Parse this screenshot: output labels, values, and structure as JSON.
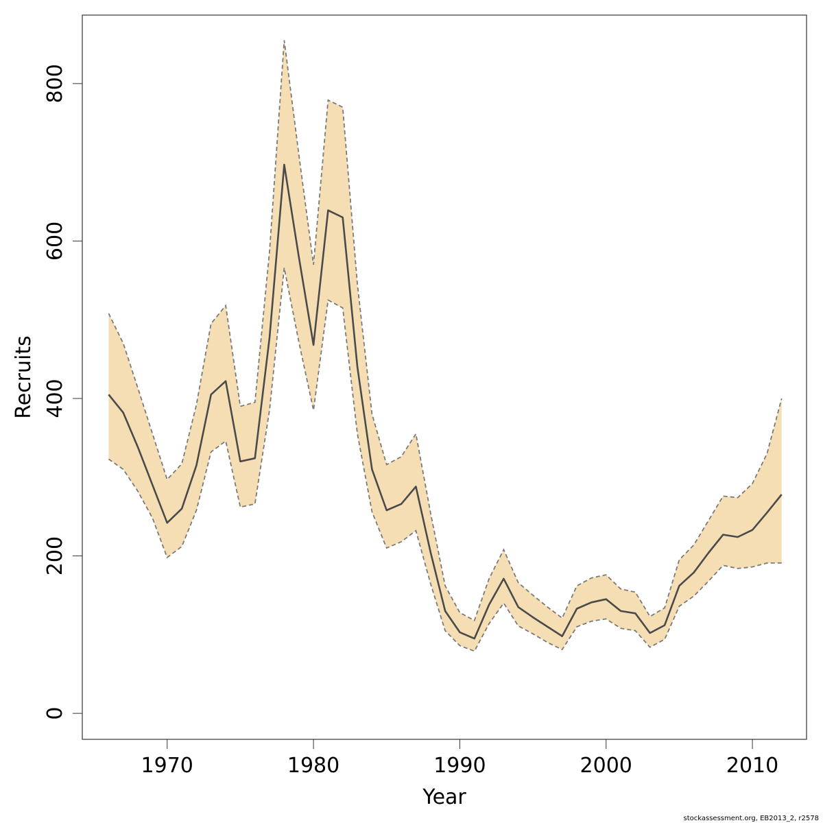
{
  "chart_data": {
    "type": "area",
    "xlabel": "Year",
    "ylabel": "Recruits",
    "xlim": [
      1964.2,
      2013.7
    ],
    "ylim": [
      -33,
      887
    ],
    "x_ticks": [
      1970,
      1980,
      1990,
      2000,
      2010
    ],
    "y_ticks": [
      0,
      200,
      400,
      600,
      800
    ],
    "x": [
      1966,
      1967,
      1968,
      1969,
      1970,
      1971,
      1972,
      1973,
      1974,
      1975,
      1976,
      1977,
      1978,
      1979,
      1980,
      1981,
      1982,
      1983,
      1984,
      1985,
      1986,
      1987,
      1988,
      1989,
      1990,
      1991,
      1992,
      1993,
      1994,
      1995,
      1996,
      1997,
      1998,
      1999,
      2000,
      2001,
      2002,
      2003,
      2004,
      2005,
      2006,
      2007,
      2008,
      2009,
      2010,
      2011,
      2012
    ],
    "series": [
      {
        "role": "estimate",
        "values": [
          405,
          382,
          338,
          290,
          242,
          260,
          315,
          405,
          422,
          320,
          324,
          478,
          697,
          580,
          468,
          639,
          630,
          440,
          310,
          258,
          266,
          288,
          205,
          130,
          103,
          95,
          138,
          171,
          135,
          122,
          110,
          98,
          133,
          141,
          145,
          130,
          127,
          102,
          112,
          162,
          179,
          204,
          227,
          224,
          233,
          255,
          278
        ]
      },
      {
        "role": "upper",
        "values": [
          508,
          470,
          413,
          355,
          297,
          317,
          392,
          495,
          518,
          390,
          395,
          588,
          855,
          710,
          570,
          779,
          770,
          545,
          380,
          316,
          326,
          355,
          255,
          162,
          128,
          118,
          171,
          208,
          166,
          150,
          135,
          121,
          162,
          172,
          176,
          158,
          154,
          123,
          134,
          195,
          214,
          245,
          276,
          274,
          292,
          330,
          400
        ]
      },
      {
        "role": "lower",
        "values": [
          323,
          310,
          282,
          248,
          198,
          212,
          258,
          332,
          346,
          262,
          266,
          386,
          566,
          472,
          385,
          525,
          515,
          355,
          256,
          210,
          218,
          232,
          165,
          105,
          86,
          79,
          114,
          140,
          111,
          101,
          90,
          81,
          110,
          117,
          120,
          108,
          105,
          84,
          94,
          136,
          149,
          168,
          188,
          184,
          186,
          191,
          191
        ]
      }
    ],
    "colors": {
      "band_fill": "#F5DEB3",
      "band_edge": "#7a7a7a",
      "line": "#4a4a4a",
      "frame": "#333333"
    },
    "grid": false,
    "legend": "none",
    "annotation": "stockassessment.org, EB2013_2, r2578"
  }
}
